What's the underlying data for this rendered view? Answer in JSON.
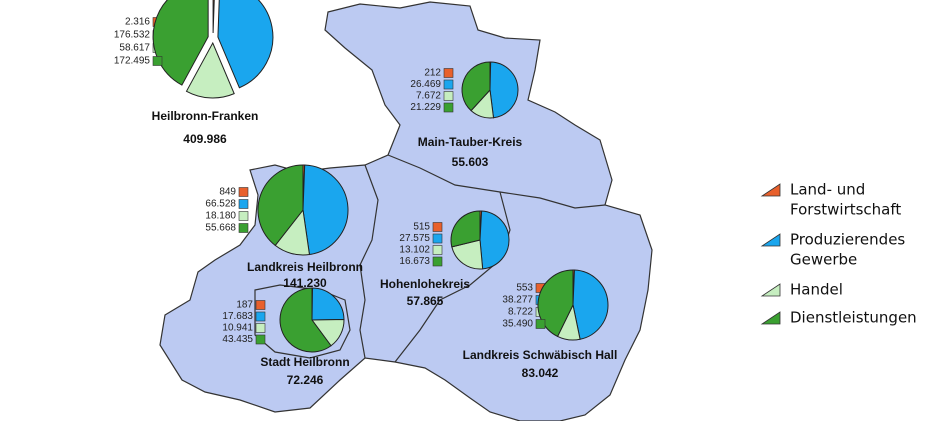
{
  "legend": [
    {
      "label": [
        "Land- und",
        "Forstwirtschaft"
      ],
      "color": "#e8602c"
    },
    {
      "label": [
        "Produzierendes",
        "Gewerbe"
      ],
      "color": "#1aa6ee"
    },
    {
      "label": [
        "Handel"
      ],
      "color": "#c6eec0"
    },
    {
      "label": [
        "Dienstleistungen"
      ],
      "color": "#3aa031"
    }
  ],
  "regions": [
    {
      "name": "Heilbronn-Franken",
      "total": "409.986",
      "values": [
        2316,
        176532,
        58617,
        172495
      ],
      "value_labels": [
        "2.316",
        "176.532",
        "58.617",
        "172.495"
      ]
    },
    {
      "name": "Main-Tauber-Kreis",
      "total": "55.603",
      "values": [
        212,
        26469,
        7672,
        21229
      ],
      "value_labels": [
        "212",
        "26.469",
        "7.672",
        "21.229"
      ]
    },
    {
      "name": "Landkreis Heilbronn",
      "total": "141.230",
      "values": [
        849,
        66528,
        18180,
        55668
      ],
      "value_labels": [
        "849",
        "66.528",
        "18.180",
        "55.668"
      ]
    },
    {
      "name": "Hohenlohekreis",
      "total": "57.865",
      "values": [
        515,
        27575,
        13102,
        16673
      ],
      "value_labels": [
        "515",
        "27.575",
        "13.102",
        "16.673"
      ]
    },
    {
      "name": "Landkreis Schwäbisch Hall",
      "total": "83.042",
      "values": [
        553,
        38277,
        8722,
        35490
      ],
      "value_labels": [
        "553",
        "38.277",
        "8.722",
        "35.490"
      ]
    },
    {
      "name": "Stadt Heilbronn",
      "total": "72.246",
      "values": [
        187,
        17683,
        10941,
        43435
      ],
      "value_labels": [
        "187",
        "17.683",
        "10.941",
        "43.435"
      ]
    }
  ]
}
